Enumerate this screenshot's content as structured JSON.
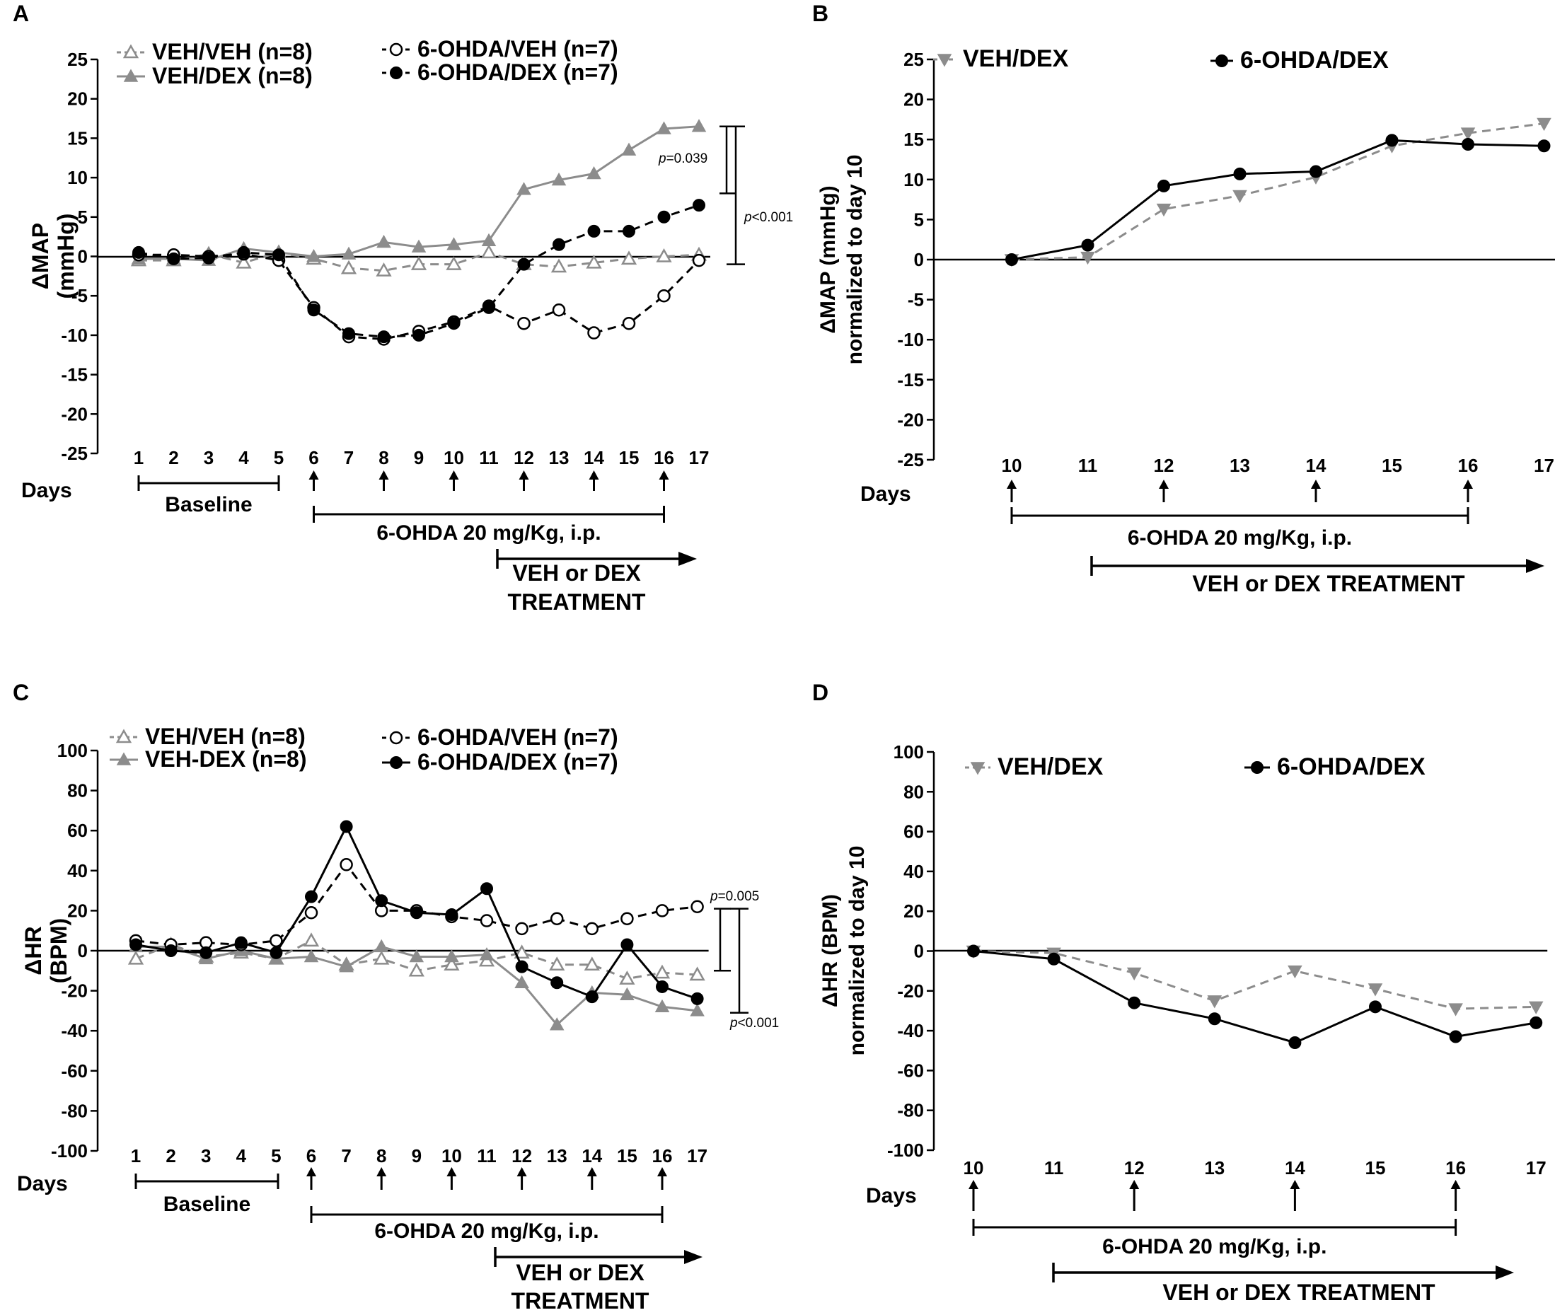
{
  "colors": {
    "black": "#000000",
    "gray": "#8c8c8c"
  },
  "chart_data": [
    {
      "panel": "A",
      "type": "line",
      "ylabel": "ΔMAP (mmHg)",
      "xlabel": "Days",
      "ylim": [
        -25,
        25
      ],
      "yticks": [
        25,
        20,
        15,
        10,
        5,
        0,
        -5,
        -10,
        -15,
        -20,
        -25
      ],
      "x": [
        1,
        2,
        3,
        4,
        5,
        6,
        7,
        8,
        9,
        10,
        11,
        12,
        13,
        14,
        15,
        16,
        17
      ],
      "xlim": [
        1,
        17
      ],
      "injection_days": [
        6,
        8,
        10,
        12,
        14,
        16
      ],
      "series": [
        {
          "name": "VEH/VEH (n=8)",
          "values": [
            -0.5,
            -0.5,
            0.3,
            -0.8,
            0.5,
            -0.3,
            -1.5,
            -1.8,
            -1.0,
            -1.0,
            0.5,
            -1.0,
            -1.3,
            -0.8,
            -0.3,
            0.0,
            0.2
          ],
          "color": "#8c8c8c",
          "marker": "triangle-open",
          "dash": true
        },
        {
          "name": "VEH/DEX (n=8)",
          "values": [
            -0.3,
            -0.3,
            -0.5,
            1.0,
            0.5,
            0.0,
            0.3,
            1.8,
            1.2,
            1.5,
            2.0,
            8.5,
            9.7,
            10.5,
            13.5,
            16.2,
            16.5
          ],
          "color": "#8c8c8c",
          "marker": "triangle-filled",
          "dash": false
        },
        {
          "name": "6-OHDA/VEH (n=7)",
          "values": [
            0.2,
            0.2,
            0.0,
            0.3,
            -0.5,
            -6.5,
            -10.2,
            -10.5,
            -9.5,
            -8.3,
            -6.3,
            -8.5,
            -6.8,
            -9.7,
            -8.5,
            -5.0,
            -0.5
          ],
          "color": "#000000",
          "marker": "circle-open",
          "dash": true
        },
        {
          "name": "6-OHDA/DEX (n=7)",
          "values": [
            0.5,
            -0.3,
            -0.2,
            0.5,
            0.2,
            -6.8,
            -9.8,
            -10.2,
            -10.0,
            -8.5,
            -6.5,
            -1.0,
            1.5,
            3.2,
            3.2,
            5.0,
            6.5
          ],
          "color": "#000000",
          "marker": "circle-filled",
          "dash": true
        }
      ],
      "annotations": [
        {
          "label_prefix": "p",
          "label_suffix": "=0.039",
          "from": 16.5,
          "to": 8.0
        },
        {
          "label_prefix": "p",
          "label_suffix": "<0.001",
          "from": 16.5,
          "to": -1.0
        }
      ],
      "treatment": {
        "baseline": "Baseline",
        "injection": "6-OHDA 20 mg/Kg, i.p.",
        "treat_line1": "VEH or DEX",
        "treat_line2": "TREATMENT"
      }
    },
    {
      "panel": "B",
      "type": "line",
      "ylabel_line1": "ΔMAP (mmHg)",
      "ylabel_line2": "normalized to day 10",
      "xlabel": "Days",
      "ylim": [
        -25,
        25
      ],
      "yticks": [
        25,
        20,
        15,
        10,
        5,
        0,
        -5,
        -10,
        -15,
        -20,
        -25
      ],
      "x": [
        10,
        11,
        12,
        13,
        14,
        15,
        16,
        17
      ],
      "xlim": [
        10,
        17
      ],
      "injection_days": [
        10,
        12,
        14,
        16
      ],
      "series": [
        {
          "name": "VEH/DEX",
          "values": [
            0.0,
            0.3,
            6.3,
            8.0,
            10.3,
            14.2,
            15.8,
            17.0
          ],
          "color": "#8c8c8c",
          "marker": "triangle-down-filled",
          "dash": true
        },
        {
          "name": "6-OHDA/DEX",
          "values": [
            0.0,
            1.8,
            9.2,
            10.7,
            11.0,
            14.9,
            14.4,
            14.2
          ],
          "color": "#000000",
          "marker": "circle-filled",
          "dash": false
        }
      ],
      "treatment": {
        "injection": "6-OHDA 20 mg/Kg, i.p.",
        "treat_line1": "VEH or DEX TREATMENT"
      }
    },
    {
      "panel": "C",
      "type": "line",
      "ylabel": "ΔHR (BPM)",
      "xlabel": "Days",
      "ylim": [
        -100,
        100
      ],
      "yticks": [
        100,
        80,
        60,
        40,
        20,
        0,
        -20,
        -40,
        -60,
        -80,
        -100
      ],
      "x": [
        1,
        2,
        3,
        4,
        5,
        6,
        7,
        8,
        9,
        10,
        11,
        12,
        13,
        14,
        15,
        16,
        17
      ],
      "xlim": [
        1,
        17
      ],
      "injection_days": [
        6,
        8,
        10,
        12,
        14,
        16
      ],
      "series": [
        {
          "name": "VEH/VEH (n=8)",
          "values": [
            -4,
            3,
            -3,
            -1,
            -4,
            5,
            -7,
            -4,
            -10,
            -7,
            -5,
            -1,
            -7,
            -7,
            -14,
            -11,
            -12
          ],
          "color": "#8c8c8c",
          "marker": "triangle-open",
          "dash": true
        },
        {
          "name": "VEH-DEX (n=8)",
          "values": [
            2,
            2,
            -4,
            0,
            -4,
            -3,
            -8,
            2,
            -3,
            -3,
            -2,
            -16,
            -37,
            -21,
            -22,
            -28,
            -30
          ],
          "color": "#8c8c8c",
          "marker": "triangle-filled",
          "dash": false
        },
        {
          "name": "6-OHDA/VEH (n=7)",
          "values": [
            5,
            3,
            4,
            3,
            5,
            19,
            43,
            20,
            20,
            17,
            15,
            11,
            16,
            11,
            16,
            20,
            22
          ],
          "color": "#000000",
          "marker": "circle-open",
          "dash": true
        },
        {
          "name": "6-OHDA/DEX (n=7)",
          "values": [
            3,
            0,
            -1,
            4,
            -1,
            27,
            62,
            25,
            19,
            18,
            31,
            -8,
            -16,
            -23,
            3,
            -18,
            -24
          ],
          "color": "#000000",
          "marker": "circle-filled",
          "dash": false
        }
      ],
      "annotations": [
        {
          "label_prefix": "p",
          "label_suffix": "=0.005",
          "from": 21,
          "to": -10
        },
        {
          "label_prefix": "p",
          "label_suffix": "<0.001",
          "from": 21,
          "to": -31
        }
      ],
      "treatment": {
        "baseline": "Baseline",
        "injection": "6-OHDA 20 mg/Kg, i.p.",
        "treat_line1": "VEH or DEX",
        "treat_line2": "TREATMENT"
      }
    },
    {
      "panel": "D",
      "type": "line",
      "ylabel_line1": "ΔHR (BPM)",
      "ylabel_line2": "normalized to day 10",
      "xlabel": "Days",
      "ylim": [
        -100,
        100
      ],
      "yticks": [
        100,
        80,
        60,
        40,
        20,
        0,
        -20,
        -40,
        -60,
        -80,
        -100
      ],
      "x": [
        10,
        11,
        12,
        13,
        14,
        15,
        16,
        17
      ],
      "xlim": [
        10,
        17
      ],
      "injection_days": [
        10,
        12,
        14,
        16
      ],
      "series": [
        {
          "name": "VEH/DEX",
          "values": [
            0,
            -1,
            -11,
            -25,
            -10,
            -19,
            -29,
            -28
          ],
          "color": "#8c8c8c",
          "marker": "triangle-down-filled",
          "dash": true
        },
        {
          "name": "6-OHDA/DEX",
          "values": [
            0,
            -4,
            -26,
            -34,
            -46,
            -28,
            -43,
            -36
          ],
          "color": "#000000",
          "marker": "circle-filled",
          "dash": false
        }
      ],
      "treatment": {
        "injection": "6-OHDA 20 mg/Kg, i.p.",
        "treat_line1": "VEH or DEX TREATMENT"
      }
    }
  ]
}
